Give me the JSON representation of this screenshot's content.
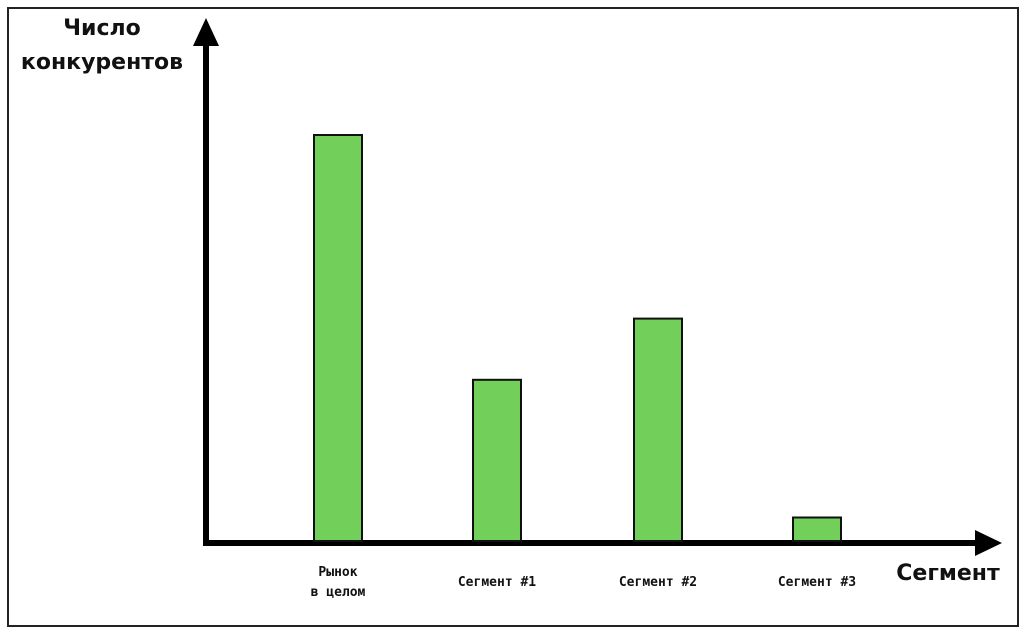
{
  "chart_data": {
    "type": "bar",
    "y_label": "Число\nконкурентов",
    "x_label": "Сегмент",
    "categories": [
      "Рынок\nв целом",
      "Сегмент #1",
      "Сегмент #2",
      "Сегмент #3"
    ],
    "values": [
      80,
      32,
      44,
      5
    ],
    "color": "#72d05a",
    "ylim": [
      0,
      100
    ]
  }
}
